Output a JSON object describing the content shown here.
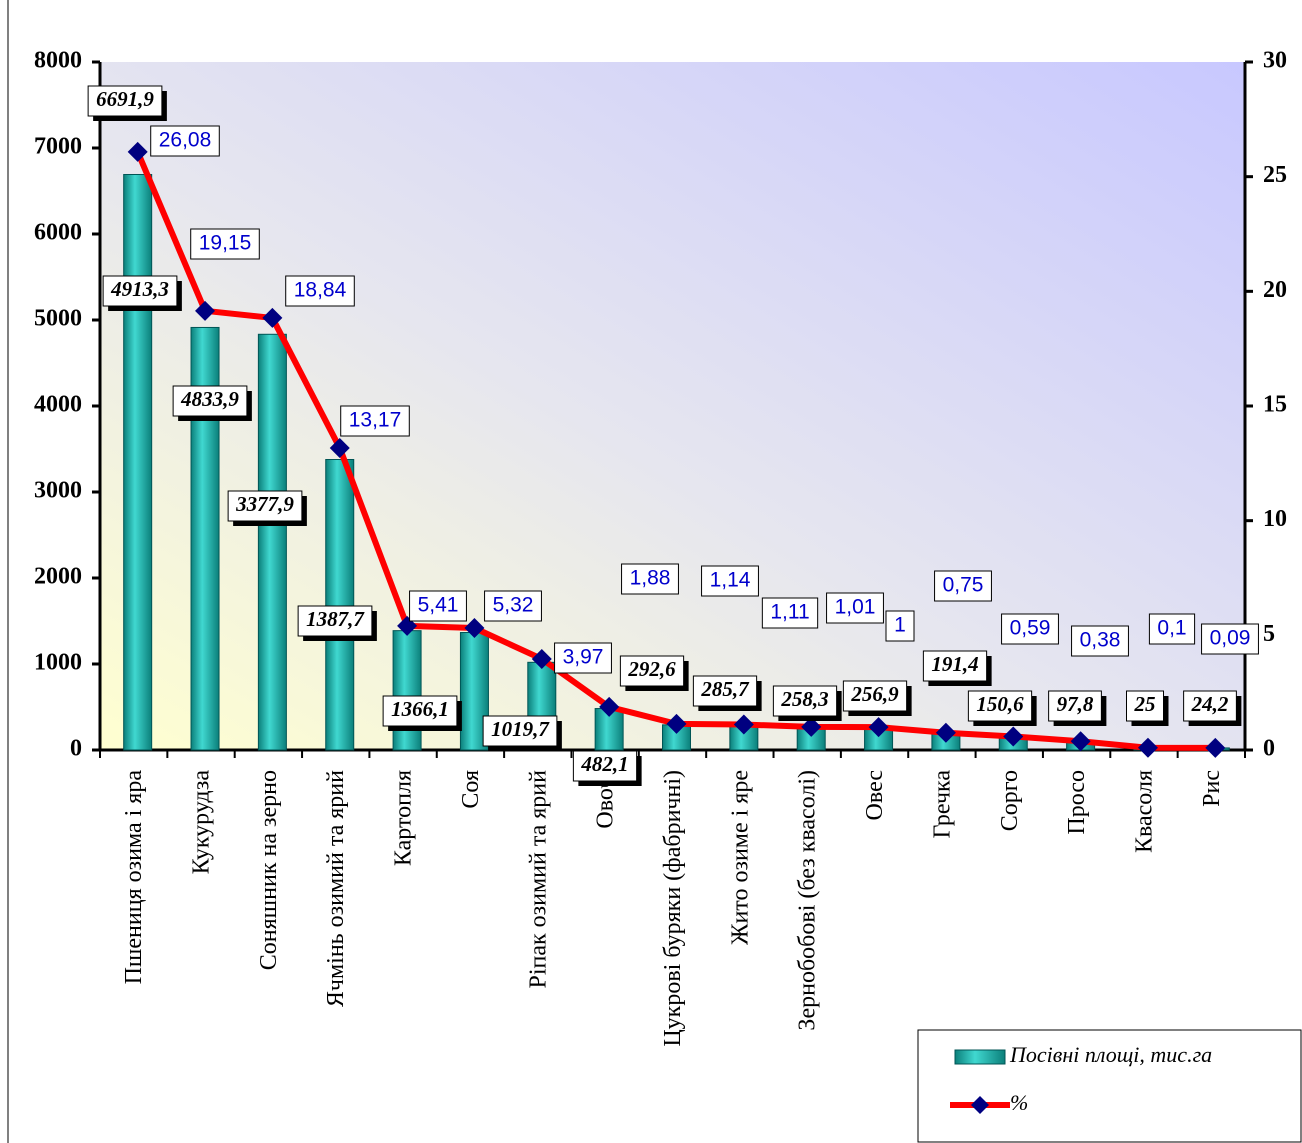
{
  "chart_data": {
    "type": "bar_line",
    "categories": [
      "Пшениця озима і яра",
      "Кукурудза",
      "Соняшник на зерно",
      "Ячмінь озимий та ярий",
      "Картопля",
      "Соя",
      "Ріпак озимий та ярий",
      "Овочі",
      "Цукрові буряки (фабричні)",
      "Жито озиме і яре",
      "Зернобобові (без квасолі)",
      "Овес",
      "Гречка",
      "Сорго",
      "Просо",
      "Квасоля",
      "Рис"
    ],
    "series": [
      {
        "name": "Посівні площі, тис.га",
        "type": "bar",
        "color": "#20b2aa",
        "values": [
          6691.9,
          4913.3,
          4833.9,
          3377.9,
          1387.7,
          1366.1,
          1019.7,
          482.1,
          292.6,
          285.7,
          258.3,
          256.9,
          191.4,
          150.6,
          97.8,
          25,
          24.2
        ],
        "value_labels": [
          "6691,9",
          "4913,3",
          "4833,9",
          "3377,9",
          "1387,7",
          "1366,1",
          "1019,7",
          "482,1",
          "292,6",
          "285,7",
          "258,3",
          "256,9",
          "191,4",
          "150,6",
          "97,8",
          "25",
          "24,2"
        ]
      },
      {
        "name": "%",
        "type": "line",
        "axis": "y2",
        "color": "#ff0000",
        "marker_color": "#000080",
        "values": [
          26.08,
          19.15,
          18.84,
          13.17,
          5.41,
          5.32,
          3.97,
          1.88,
          1.14,
          1.11,
          1.01,
          1,
          0.75,
          0.59,
          0.38,
          0.1,
          0.09
        ],
        "value_labels": [
          "26,08",
          "19,15",
          "18,84",
          "13,17",
          "5,41",
          "5,32",
          "3,97",
          "1,88",
          "1,14",
          "1,11",
          "1,01",
          "1",
          "0,75",
          "0,59",
          "0,38",
          "0,1",
          "0,09"
        ]
      }
    ],
    "ylim": [
      0,
      8000
    ],
    "yticks": [
      0,
      1000,
      2000,
      3000,
      4000,
      5000,
      6000,
      7000,
      8000
    ],
    "y2lim": [
      0,
      30
    ],
    "y2ticks": [
      0,
      5,
      10,
      15,
      20,
      25,
      30
    ],
    "legend": "bottom-right"
  }
}
